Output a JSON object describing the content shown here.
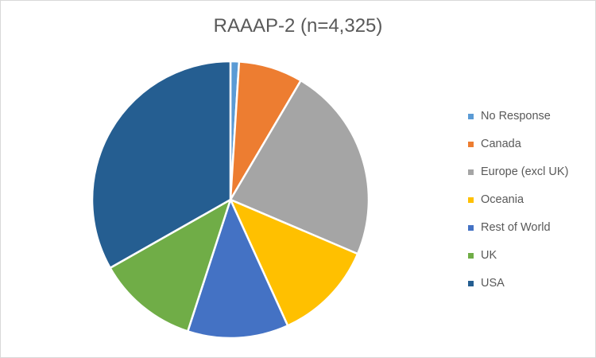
{
  "chart_data": {
    "type": "pie",
    "title": "RAAAP-2 (n=4,325)",
    "legend_position": "right",
    "slices": [
      {
        "label": "No Response",
        "value": 1.0,
        "color": "#5b9bd5"
      },
      {
        "label": "Canada",
        "value": 7.5,
        "color": "#ed7d31"
      },
      {
        "label": "Europe (excl UK)",
        "value": 22.9,
        "color": "#a5a5a5"
      },
      {
        "label": "Oceania",
        "value": 11.8,
        "color": "#ffc000"
      },
      {
        "label": "Rest of World",
        "value": 11.8,
        "color": "#4472c4"
      },
      {
        "label": "UK",
        "value": 11.8,
        "color": "#70ad47"
      },
      {
        "label": "USA",
        "value": 33.2,
        "color": "#255e91"
      }
    ]
  }
}
